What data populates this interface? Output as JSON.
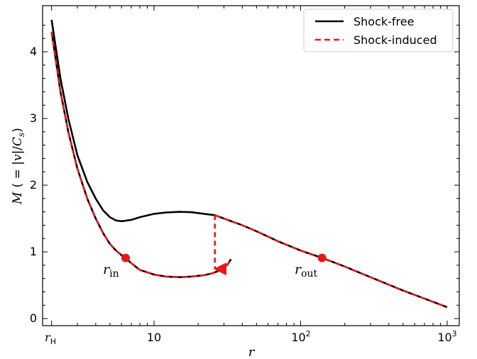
{
  "chart_data": {
    "type": "line",
    "xscale": "log",
    "xlim": [
      2.0,
      1000
    ],
    "ylim": [
      -0.1,
      4.65
    ],
    "xlabel": "r",
    "ylabel": "M ( = |v|/C_s)",
    "x_ticks": [
      {
        "value": 2.0,
        "label": "r_H"
      },
      {
        "value": 10,
        "label": "10"
      },
      {
        "value": 100,
        "label": "10^2"
      },
      {
        "value": 1000,
        "label": "10^3"
      }
    ],
    "y_ticks": [
      0,
      1,
      2,
      3,
      4
    ],
    "grid": false,
    "legend_position": "top-right",
    "series": [
      {
        "name": "Shock-free",
        "color": "#000000",
        "style": "solid",
        "points": [
          [
            2.0,
            4.48
          ],
          [
            2.3,
            3.6
          ],
          [
            2.6,
            3.0
          ],
          [
            3.0,
            2.45
          ],
          [
            3.5,
            2.05
          ],
          [
            4.0,
            1.8
          ],
          [
            4.5,
            1.62
          ],
          [
            5.0,
            1.52
          ],
          [
            5.5,
            1.47
          ],
          [
            6.0,
            1.46
          ],
          [
            7.0,
            1.48
          ],
          [
            8.0,
            1.52
          ],
          [
            10.0,
            1.57
          ],
          [
            12.0,
            1.59
          ],
          [
            15.0,
            1.6
          ],
          [
            18.0,
            1.595
          ],
          [
            22.0,
            1.57
          ],
          [
            26.0,
            1.55
          ],
          [
            30.0,
            1.5
          ],
          [
            40.0,
            1.4
          ],
          [
            50.0,
            1.31
          ],
          [
            70.0,
            1.16
          ],
          [
            100.0,
            1.02
          ],
          [
            140.0,
            0.91
          ],
          [
            200.0,
            0.78
          ],
          [
            300.0,
            0.62
          ],
          [
            500.0,
            0.42
          ],
          [
            700.0,
            0.3
          ],
          [
            1000.0,
            0.17
          ]
        ]
      },
      {
        "name": "Shock-induced",
        "color": "#e8171b",
        "style": "dashed",
        "points": [
          [
            2.0,
            4.3
          ],
          [
            2.3,
            3.4
          ],
          [
            2.6,
            2.8
          ],
          [
            3.0,
            2.25
          ],
          [
            3.5,
            1.8
          ],
          [
            4.0,
            1.5
          ],
          [
            4.5,
            1.28
          ],
          [
            5.0,
            1.12
          ],
          [
            5.5,
            1.02
          ],
          [
            6.0,
            0.95
          ],
          [
            6.4,
            0.91
          ],
          [
            7.0,
            0.83
          ],
          [
            8.0,
            0.73
          ],
          [
            10.0,
            0.66
          ],
          [
            12.0,
            0.63
          ],
          [
            15.0,
            0.62
          ],
          [
            18.0,
            0.63
          ],
          [
            22.0,
            0.65
          ],
          [
            25.0,
            0.68
          ],
          [
            28.0,
            0.72
          ],
          [
            30.0,
            0.76
          ],
          [
            32.0,
            0.82
          ],
          [
            33.5,
            0.89
          ]
        ]
      },
      {
        "name": "Shock-induced",
        "color": "#e8171b",
        "style": "dashed",
        "points": [
          [
            26.0,
            1.55
          ],
          [
            30.0,
            1.5
          ],
          [
            40.0,
            1.4
          ],
          [
            50.0,
            1.31
          ],
          [
            70.0,
            1.16
          ],
          [
            100.0,
            1.02
          ],
          [
            140.0,
            0.91
          ],
          [
            200.0,
            0.78
          ],
          [
            300.0,
            0.62
          ],
          [
            500.0,
            0.42
          ],
          [
            700.0,
            0.3
          ],
          [
            1000.0,
            0.17
          ]
        ]
      }
    ],
    "shock_jump": {
      "x": 26.0,
      "y_from": 1.55,
      "y_to": 0.68,
      "color": "#e8171b"
    },
    "markers": [
      {
        "label": "r_in",
        "x": 6.4,
        "y": 0.91,
        "color": "#e8171b"
      },
      {
        "label": "r_out",
        "x": 140,
        "y": 0.91,
        "color": "#e8171b"
      }
    ]
  },
  "text": {
    "xlabel": "r",
    "ylabel_prefix": "M",
    "ylabel_body": "( = |",
    "ylabel_v": "v",
    "ylabel_mid": "|/",
    "ylabel_C": "C",
    "ylabel_sub": "s",
    "ylabel_end": ")",
    "legend_shock_free": "Shock-free",
    "legend_shock_induced": "Shock-induced",
    "rin_main": "r",
    "rin_sub": "in",
    "rout_main": "r",
    "rout_sub": "out",
    "xtick_rH_main": "r",
    "xtick_rH_sub": "H",
    "xtick_10": "10",
    "xtick_100_base": "10",
    "xtick_100_exp": "2",
    "xtick_1000_base": "10",
    "xtick_1000_exp": "3"
  }
}
